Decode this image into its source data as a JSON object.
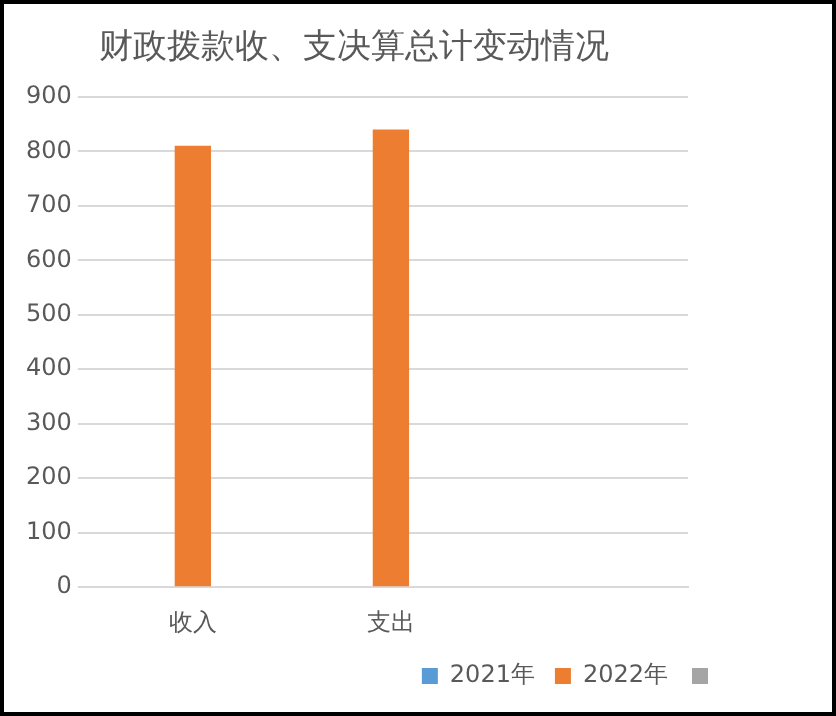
{
  "chart_data": {
    "type": "bar",
    "title": "财政拨款收、支决算总计变动情况",
    "categories": [
      "收入",
      "支出",
      null
    ],
    "series": [
      {
        "name": "2021年",
        "color": "#5b9bd5",
        "values": [
          null,
          null,
          null
        ]
      },
      {
        "name": "2022年",
        "color": "#ed7d31",
        "values": [
          810,
          840,
          null
        ]
      },
      {
        "color": "#a5a5a5",
        "values": [
          null,
          null,
          null
        ]
      }
    ],
    "ylim": [
      0,
      900
    ],
    "yticks": [
      0,
      100,
      200,
      300,
      400,
      500,
      600,
      700,
      800,
      900
    ],
    "grid": "y",
    "legend": "bottom right"
  }
}
